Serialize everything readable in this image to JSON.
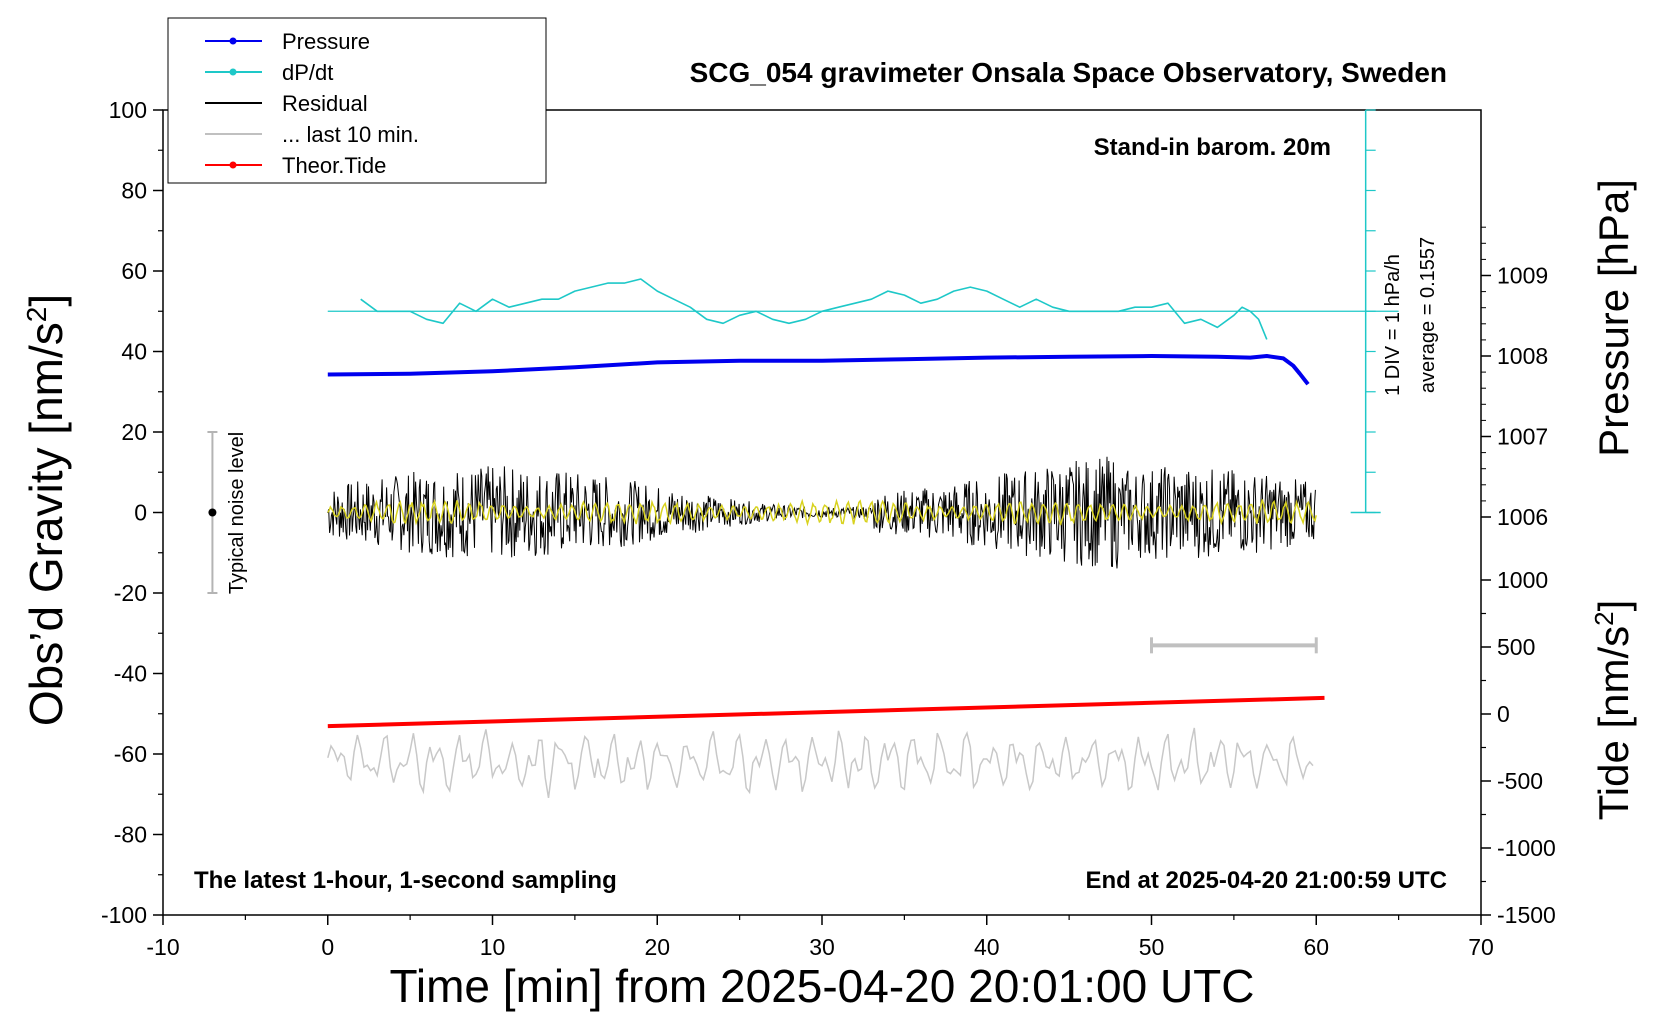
{
  "chart_data": {
    "type": "line",
    "title": "SCG_054 gravimeter Onsala Space Observatory, Sweden",
    "xlabel": "Time [min] from 2025-04-20 20:01:00 UTC",
    "ylabel": "Obs’d Gravity [nm/s",
    "ylabel_sup": "2",
    "ylabel_close": "]",
    "y2label": "Pressure [hPa]",
    "y3label": "Tide [nm/s",
    "y3label_sup": "2",
    "y3label_close": "]",
    "xlim": [
      -10,
      70
    ],
    "ylim": [
      -100,
      100
    ],
    "pressure_lim": [
      1004.0,
      1009.8
    ],
    "tide_lim": [
      -1500,
      1000
    ],
    "x_ticks": [
      -10,
      0,
      10,
      20,
      30,
      40,
      50,
      60,
      70
    ],
    "x_tick_labels": [
      "-10",
      "0",
      "10",
      "20",
      "30",
      "40",
      "50",
      "60",
      "70"
    ],
    "y_ticks": [
      100,
      80,
      60,
      40,
      20,
      0,
      -20,
      -40,
      -60,
      -80,
      -100
    ],
    "y_tick_labels": [
      "100",
      "80",
      "60",
      "40",
      "20",
      "0",
      "-20",
      "-40",
      "-60",
      "-80",
      "-100"
    ],
    "pressure_ticks": [
      1009,
      1008,
      1007,
      1006
    ],
    "pressure_tick_labels": [
      "1009",
      "1008",
      "1007",
      "1006"
    ],
    "tide_ticks": [
      1000,
      500,
      0,
      -500,
      -1000,
      -1500
    ],
    "tide_tick_labels": [
      "1000",
      "500",
      "0",
      "-500",
      "-1000",
      "-1500"
    ],
    "series": [
      {
        "name": "Pressure",
        "color": "#0000ee",
        "axis": "pressure_hPa",
        "x": [
          0,
          5,
          10,
          15,
          20,
          25,
          30,
          35,
          40,
          45,
          50,
          54,
          56,
          57,
          58,
          58.6,
          59,
          59.5
        ],
        "y": [
          1007.77,
          1007.78,
          1007.81,
          1007.86,
          1007.92,
          1007.94,
          1007.94,
          1007.96,
          1007.98,
          1007.99,
          1008.0,
          1007.99,
          1007.98,
          1008.0,
          1007.97,
          1007.88,
          1007.78,
          1007.65
        ]
      },
      {
        "name": "dP/dt",
        "color": "#1ec8c8",
        "axis": "gravity_scaled",
        "average": "average = 0.1557",
        "scale": "1 DIV = 1 hPa/h",
        "x": [
          2.0,
          3.0,
          4.0,
          5.0,
          6.0,
          7.0,
          8.0,
          9.0,
          10.0,
          11.0,
          12.0,
          13.0,
          14.0,
          15.0,
          16.0,
          17.0,
          18.0,
          19.0,
          20.0,
          21.0,
          22.0,
          23.0,
          24.0,
          25.0,
          26.0,
          27.0,
          28.0,
          29.0,
          30.0,
          31.0,
          32.0,
          33.0,
          34.0,
          35.0,
          36.0,
          37.0,
          38.0,
          39.0,
          40.0,
          41.0,
          42.0,
          43.0,
          44.0,
          45.0,
          46.0,
          47.0,
          48.0,
          49.0,
          50.0,
          51.0,
          52.0,
          53.0,
          54.0,
          55.0,
          55.5,
          56.0,
          56.5,
          57.0
        ],
        "y": [
          53,
          50,
          50,
          50,
          48,
          47,
          52,
          50,
          53,
          51,
          52,
          53,
          53,
          55,
          56,
          57,
          57,
          58,
          55,
          53,
          51,
          48,
          47,
          49,
          50,
          48,
          47,
          48,
          50,
          51,
          52,
          53,
          55,
          54,
          52,
          53,
          55,
          56,
          55,
          53,
          51,
          53,
          51,
          50,
          50,
          50,
          50,
          51,
          51,
          52,
          47,
          48,
          46,
          49,
          51,
          50,
          48,
          43
        ]
      },
      {
        "name": "Residual",
        "color": "#000000",
        "axis": "gravity",
        "x": [
          0,
          60
        ],
        "y": [
          0,
          0
        ]
      },
      {
        "name": "... last 10 min.",
        "color": "#c0c0c0",
        "axis": "gravity",
        "x": [
          50,
          60
        ],
        "y": [
          -33,
          -33
        ]
      },
      {
        "name": "Theor.Tide",
        "color": "#ff0000",
        "axis": "tide",
        "x": [
          0,
          60.5
        ],
        "y": [
          -90,
          120
        ]
      },
      {
        "name": "",
        "color": "#c8c8c8",
        "axis": "gravity",
        "x": [
          0,
          2.5,
          5,
          7.5,
          10,
          12.5,
          15,
          17.5,
          20,
          22.5,
          25,
          27.5,
          30,
          32.5,
          35,
          37.5,
          40,
          42.5,
          45,
          47.5,
          50,
          52.5,
          55,
          57.5,
          60
        ],
        "y": [
          -60,
          -62,
          -61,
          -63,
          -62,
          -60,
          -62,
          -61,
          -60,
          -62,
          -61,
          -63,
          -62,
          -60,
          -61,
          -59,
          -62,
          -61,
          -60,
          -62,
          -61,
          -63,
          -62,
          -60,
          -62
        ]
      }
    ],
    "noise_bar": {
      "label": "Typical noise level",
      "x": -7,
      "y": 0,
      "low": -20,
      "high": 20
    },
    "legend_position": "top-left"
  },
  "notes": {
    "barometer": "Stand-in barom. 20m",
    "sampling": "The latest 1-hour, 1-second sampling",
    "end_time": "End at 2025-04-20 21:00:59 UTC",
    "dpdt_scale": "1 DIV = 1 hPa/h",
    "dpdt_average": "average = 0.1557",
    "noise_label": "Typical noise level"
  },
  "legend": [
    {
      "label": "Pressure",
      "color": "#0000ee",
      "marker": true
    },
    {
      "label": "dP/dt",
      "color": "#1ec8c8",
      "marker": true
    },
    {
      "label": "Residual",
      "color": "#000000",
      "marker": false
    },
    {
      "label": "... last 10 min.",
      "color": "#c0c0c0",
      "marker": false
    },
    {
      "label": "Theor.Tide",
      "color": "#ff0000",
      "marker": true
    }
  ]
}
